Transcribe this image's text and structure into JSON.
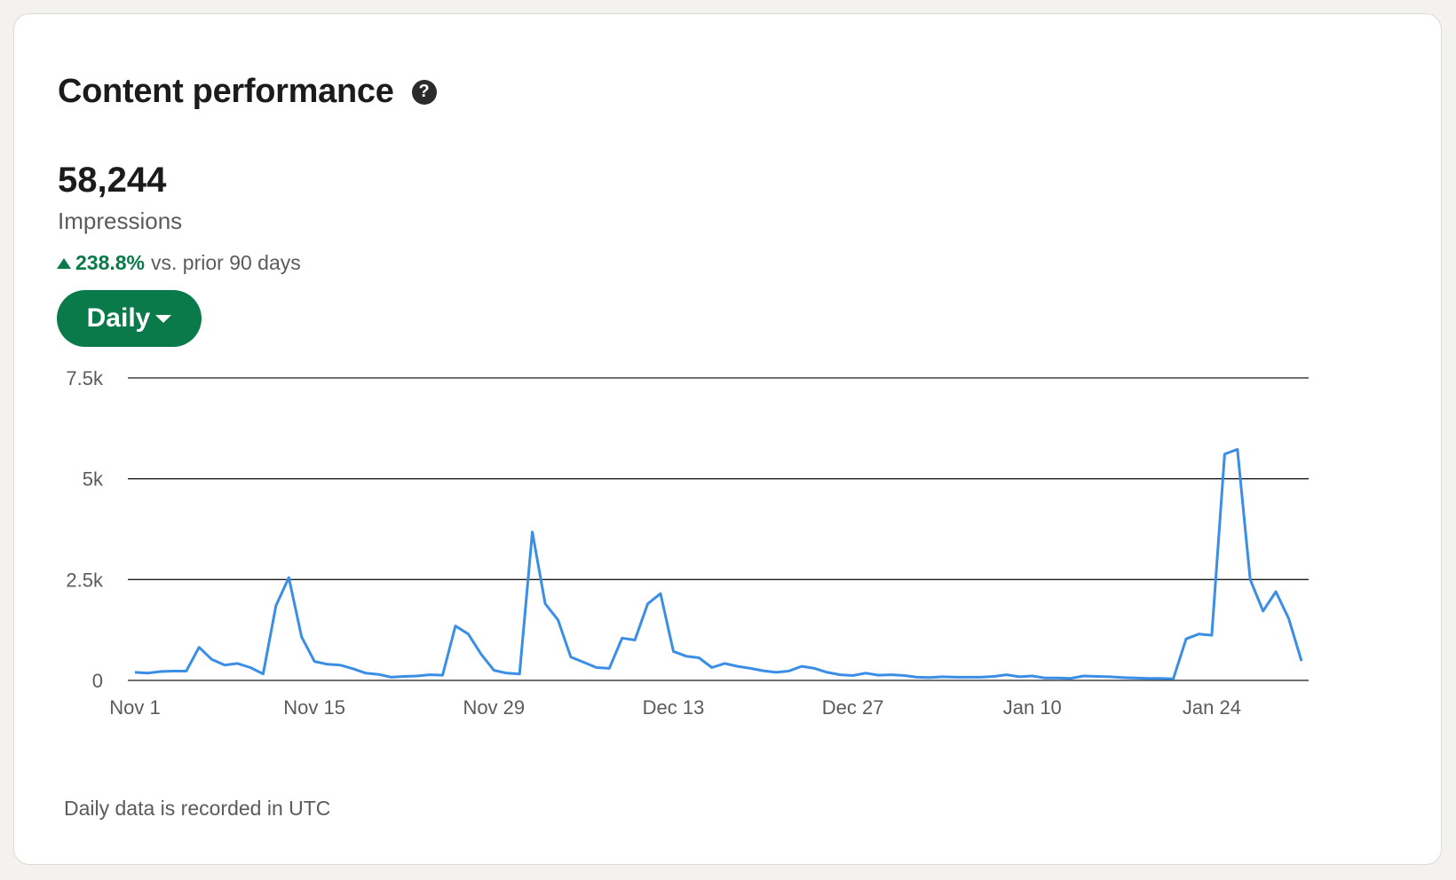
{
  "card": {
    "title": "Content performance",
    "help_icon": "?",
    "metric_value": "58,244",
    "metric_label": "Impressions",
    "change_value": "238.8%",
    "change_text": "vs. prior 90 days",
    "period_button": "Daily",
    "footnote": "Daily data is recorded in UTC"
  },
  "colors": {
    "accent_green": "#0b7a4b",
    "line_blue": "#3a8ee6",
    "text_dark": "#1b1b1b",
    "text_muted": "#5b5b5b"
  },
  "chart_data": {
    "type": "line",
    "title": "",
    "xlabel": "",
    "ylabel": "",
    "ylim": [
      0,
      7500
    ],
    "y_ticks": [
      0,
      2500,
      5000,
      7500
    ],
    "y_tick_labels": [
      "0",
      "2.5k",
      "5k",
      "7.5k"
    ],
    "x_tick_labels": [
      "Nov 1",
      "Nov 15",
      "Nov 29",
      "Dec 13",
      "Dec 27",
      "Jan 10",
      "Jan 24"
    ],
    "grid": true,
    "series": [
      {
        "values": [
          200,
          180,
          220,
          230,
          230,
          820,
          520,
          380,
          420,
          320,
          160,
          1850,
          2550,
          1080,
          470,
          400,
          380,
          290,
          180,
          150,
          80,
          100,
          110,
          140,
          130,
          1350,
          1150,
          650,
          250,
          180,
          160,
          3680,
          1900,
          1500,
          580,
          450,
          320,
          300,
          1050,
          1000,
          1900,
          2150,
          720,
          600,
          560,
          320,
          420,
          350,
          300,
          240,
          200,
          230,
          350,
          300,
          200,
          140,
          120,
          180,
          130,
          140,
          120,
          80,
          70,
          90,
          80,
          80,
          80,
          100,
          140,
          90,
          110,
          60,
          60,
          50,
          110,
          100,
          90,
          70,
          60,
          50,
          50,
          40,
          1030,
          1150,
          1120,
          5610,
          5730,
          2500,
          1720,
          2200,
          1530,
          480
        ]
      }
    ]
  }
}
